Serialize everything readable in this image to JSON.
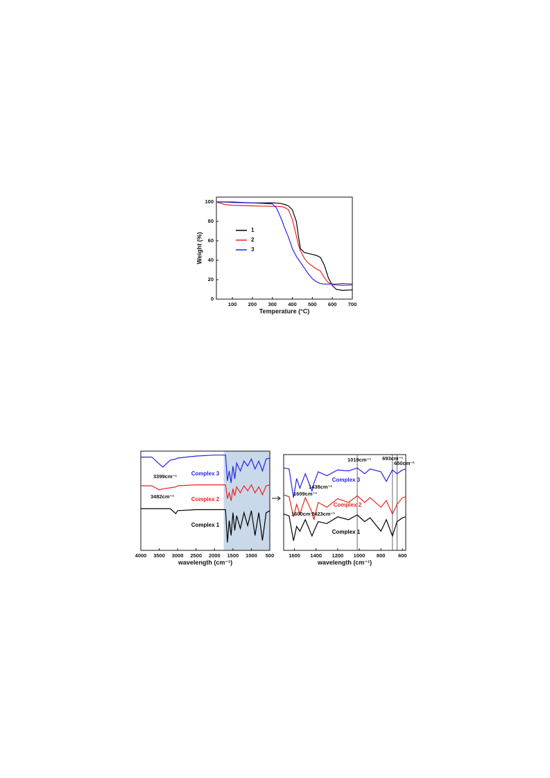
{
  "chart_data": [
    {
      "type": "line",
      "x_label": "Temperature (°C)",
      "y_label": "Weight (%)",
      "legend": "inside-upper-left",
      "xlim": [
        20,
        700
      ],
      "ylim": [
        0,
        105
      ],
      "xticks": [
        100,
        200,
        300,
        400,
        500,
        600,
        700
      ],
      "yticks": [
        0,
        20,
        40,
        60,
        80,
        100
      ],
      "x": [
        20,
        60,
        100,
        200,
        300,
        320,
        340,
        350,
        360,
        380,
        400,
        420,
        430,
        440,
        460,
        480,
        500,
        520,
        540,
        560,
        580,
        600,
        620,
        650,
        700
      ],
      "series": [
        {
          "name": "1",
          "color": "#000000",
          "values": [
            100,
            100,
            99.5,
            99,
            99,
            98.8,
            98.5,
            98,
            97.5,
            96,
            92,
            80,
            65,
            52,
            48,
            47,
            46,
            45,
            43,
            35,
            22,
            14,
            10,
            9,
            9.5
          ]
        },
        {
          "name": "2",
          "color": "#e8231f",
          "values": [
            100,
            97.5,
            96.5,
            96,
            95.5,
            95.5,
            95.3,
            95,
            94.5,
            92,
            82,
            65,
            56,
            50,
            42,
            37,
            34,
            31,
            29,
            22,
            17,
            15,
            14.5,
            14,
            14.5
          ]
        },
        {
          "name": "3",
          "color": "#2424e8",
          "values": [
            100,
            100,
            100,
            99,
            98,
            94,
            85,
            80,
            74,
            64,
            52,
            44,
            41,
            38,
            32,
            26,
            21,
            18,
            16,
            15.5,
            15.5,
            15.5,
            15.5,
            16,
            15.5
          ]
        }
      ]
    },
    {
      "type": "line",
      "x_label": "wavelength (cm⁻¹)",
      "xlim": [
        4000,
        500
      ],
      "ylim": [
        0,
        100
      ],
      "xticks": [
        4000,
        3500,
        3000,
        2500,
        2000,
        1500,
        1000,
        500
      ],
      "highlight": [
        1750,
        500
      ],
      "x": [
        4000,
        3700,
        3500,
        3399,
        3200,
        3050,
        3000,
        2500,
        2000,
        1700,
        1650,
        1600,
        1550,
        1500,
        1450,
        1400,
        1300,
        1200,
        1100,
        1000,
        900,
        800,
        700,
        600,
        500
      ],
      "series": [
        {
          "name": "Complex 3",
          "color": "#2424e8",
          "values": [
            94,
            94,
            87,
            84,
            91,
            92,
            93,
            95,
            96,
            96,
            70,
            80,
            68,
            85,
            72,
            88,
            80,
            90,
            85,
            92,
            82,
            90,
            80,
            92,
            93
          ]
        },
        {
          "name": "Complex 2",
          "color": "#e8231f",
          "values": [
            65,
            65,
            61,
            62,
            63,
            64,
            65,
            66,
            66,
            66,
            52,
            58,
            50,
            62,
            55,
            64,
            58,
            65,
            60,
            66,
            58,
            64,
            56,
            65,
            66
          ]
        },
        {
          "name": "Complex 1",
          "color": "#000000",
          "values": [
            42,
            42,
            42,
            42,
            42,
            37,
            40,
            41,
            41,
            41,
            8,
            30,
            15,
            38,
            20,
            35,
            22,
            38,
            25,
            40,
            15,
            38,
            10,
            38,
            40
          ]
        }
      ],
      "annotations": [
        "3399cm⁻¹",
        "3482cm⁻¹"
      ]
    },
    {
      "type": "line",
      "x_label": "wavelength (cm⁻¹)",
      "xlim": [
        1700,
        570
      ],
      "ylim": [
        0,
        100
      ],
      "xticks": [
        1600,
        1400,
        1200,
        1000,
        800,
        600
      ],
      "markers": [
        1019,
        693,
        650
      ],
      "x": [
        1700,
        1650,
        1609,
        1580,
        1550,
        1500,
        1438,
        1420,
        1380,
        1300,
        1200,
        1100,
        1019,
        950,
        900,
        800,
        750,
        693,
        650,
        600,
        570
      ],
      "series": [
        {
          "name": "Complex 3",
          "color": "#2424e8",
          "values": [
            86,
            85,
            55,
            75,
            65,
            80,
            62,
            70,
            82,
            78,
            84,
            83,
            86,
            80,
            85,
            82,
            72,
            84,
            80,
            84,
            85
          ]
        },
        {
          "name": "Complex 2",
          "color": "#e8231f",
          "values": [
            58,
            56,
            35,
            48,
            38,
            55,
            40,
            32,
            50,
            45,
            54,
            50,
            57,
            50,
            55,
            45,
            52,
            38,
            48,
            55,
            56
          ]
        },
        {
          "name": "Complex 1",
          "color": "#000000",
          "values": [
            38,
            36,
            10,
            25,
            20,
            32,
            15,
            20,
            30,
            28,
            35,
            32,
            37,
            30,
            34,
            20,
            32,
            15,
            30,
            34,
            35
          ]
        }
      ],
      "annotations": [
        "1019cm⁻¹",
        "693cm⁻¹",
        "650cm⁻¹",
        "1609cm⁻¹",
        "1438cm⁻¹",
        "1600cm⁻¹",
        "1423cm⁻¹"
      ]
    }
  ]
}
